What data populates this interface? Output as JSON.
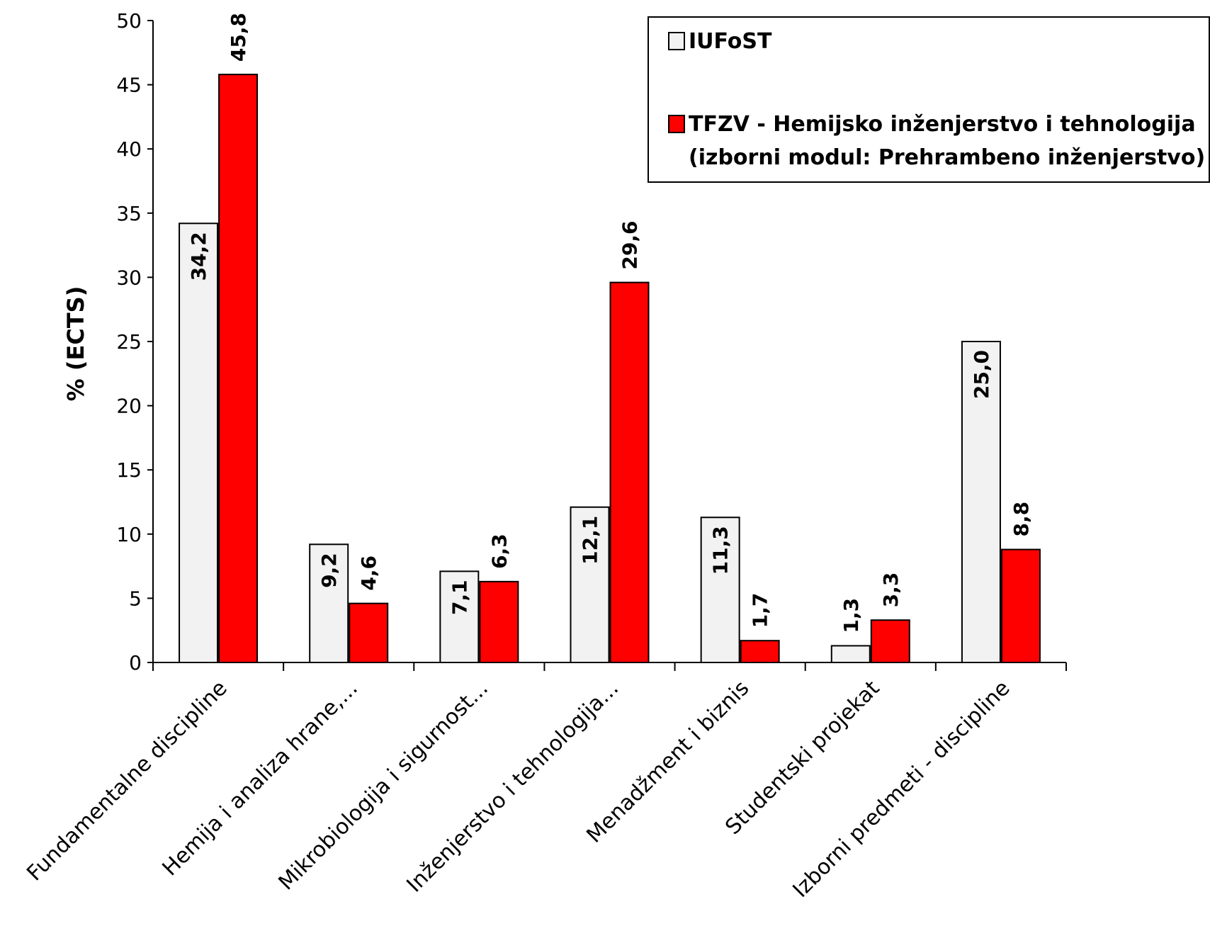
{
  "chart_data": {
    "type": "bar",
    "ylabel": "% (ECTS)",
    "ylim": [
      0,
      50
    ],
    "yticks": [
      0,
      5,
      10,
      15,
      20,
      25,
      30,
      35,
      40,
      45,
      50
    ],
    "categories": [
      "Fundamentalne discipline",
      "Hemija i analiza hrane,...",
      "Mikrobiologija i sigurnost...",
      "Inženjerstvo i tehnologija...",
      "Menadžment i biznis",
      "Studentski projekat",
      "Izborni predmeti - discipline"
    ],
    "series": [
      {
        "name": "IUFoST",
        "color": "#f2f2f2",
        "values": [
          34.2,
          9.2,
          7.1,
          12.1,
          11.3,
          1.3,
          25.0
        ],
        "labels": [
          "34,2",
          "9,2",
          "7,1",
          "12,1",
          "11,3",
          "1,3",
          "25,0"
        ]
      },
      {
        "name": "TFZV - Hemijsko inženjerstvo i tehnologija",
        "name_line2": "(izborni modul: Prehrambeno inženjerstvo)",
        "color": "#ff0000",
        "values": [
          45.8,
          4.6,
          6.3,
          29.6,
          1.7,
          3.3,
          8.8
        ],
        "labels": [
          "45,8",
          "4,6",
          "6,3",
          "29,6",
          "1,7",
          "3,3",
          "8,8"
        ]
      }
    ],
    "legend_position": "top-right",
    "grid": false
  }
}
